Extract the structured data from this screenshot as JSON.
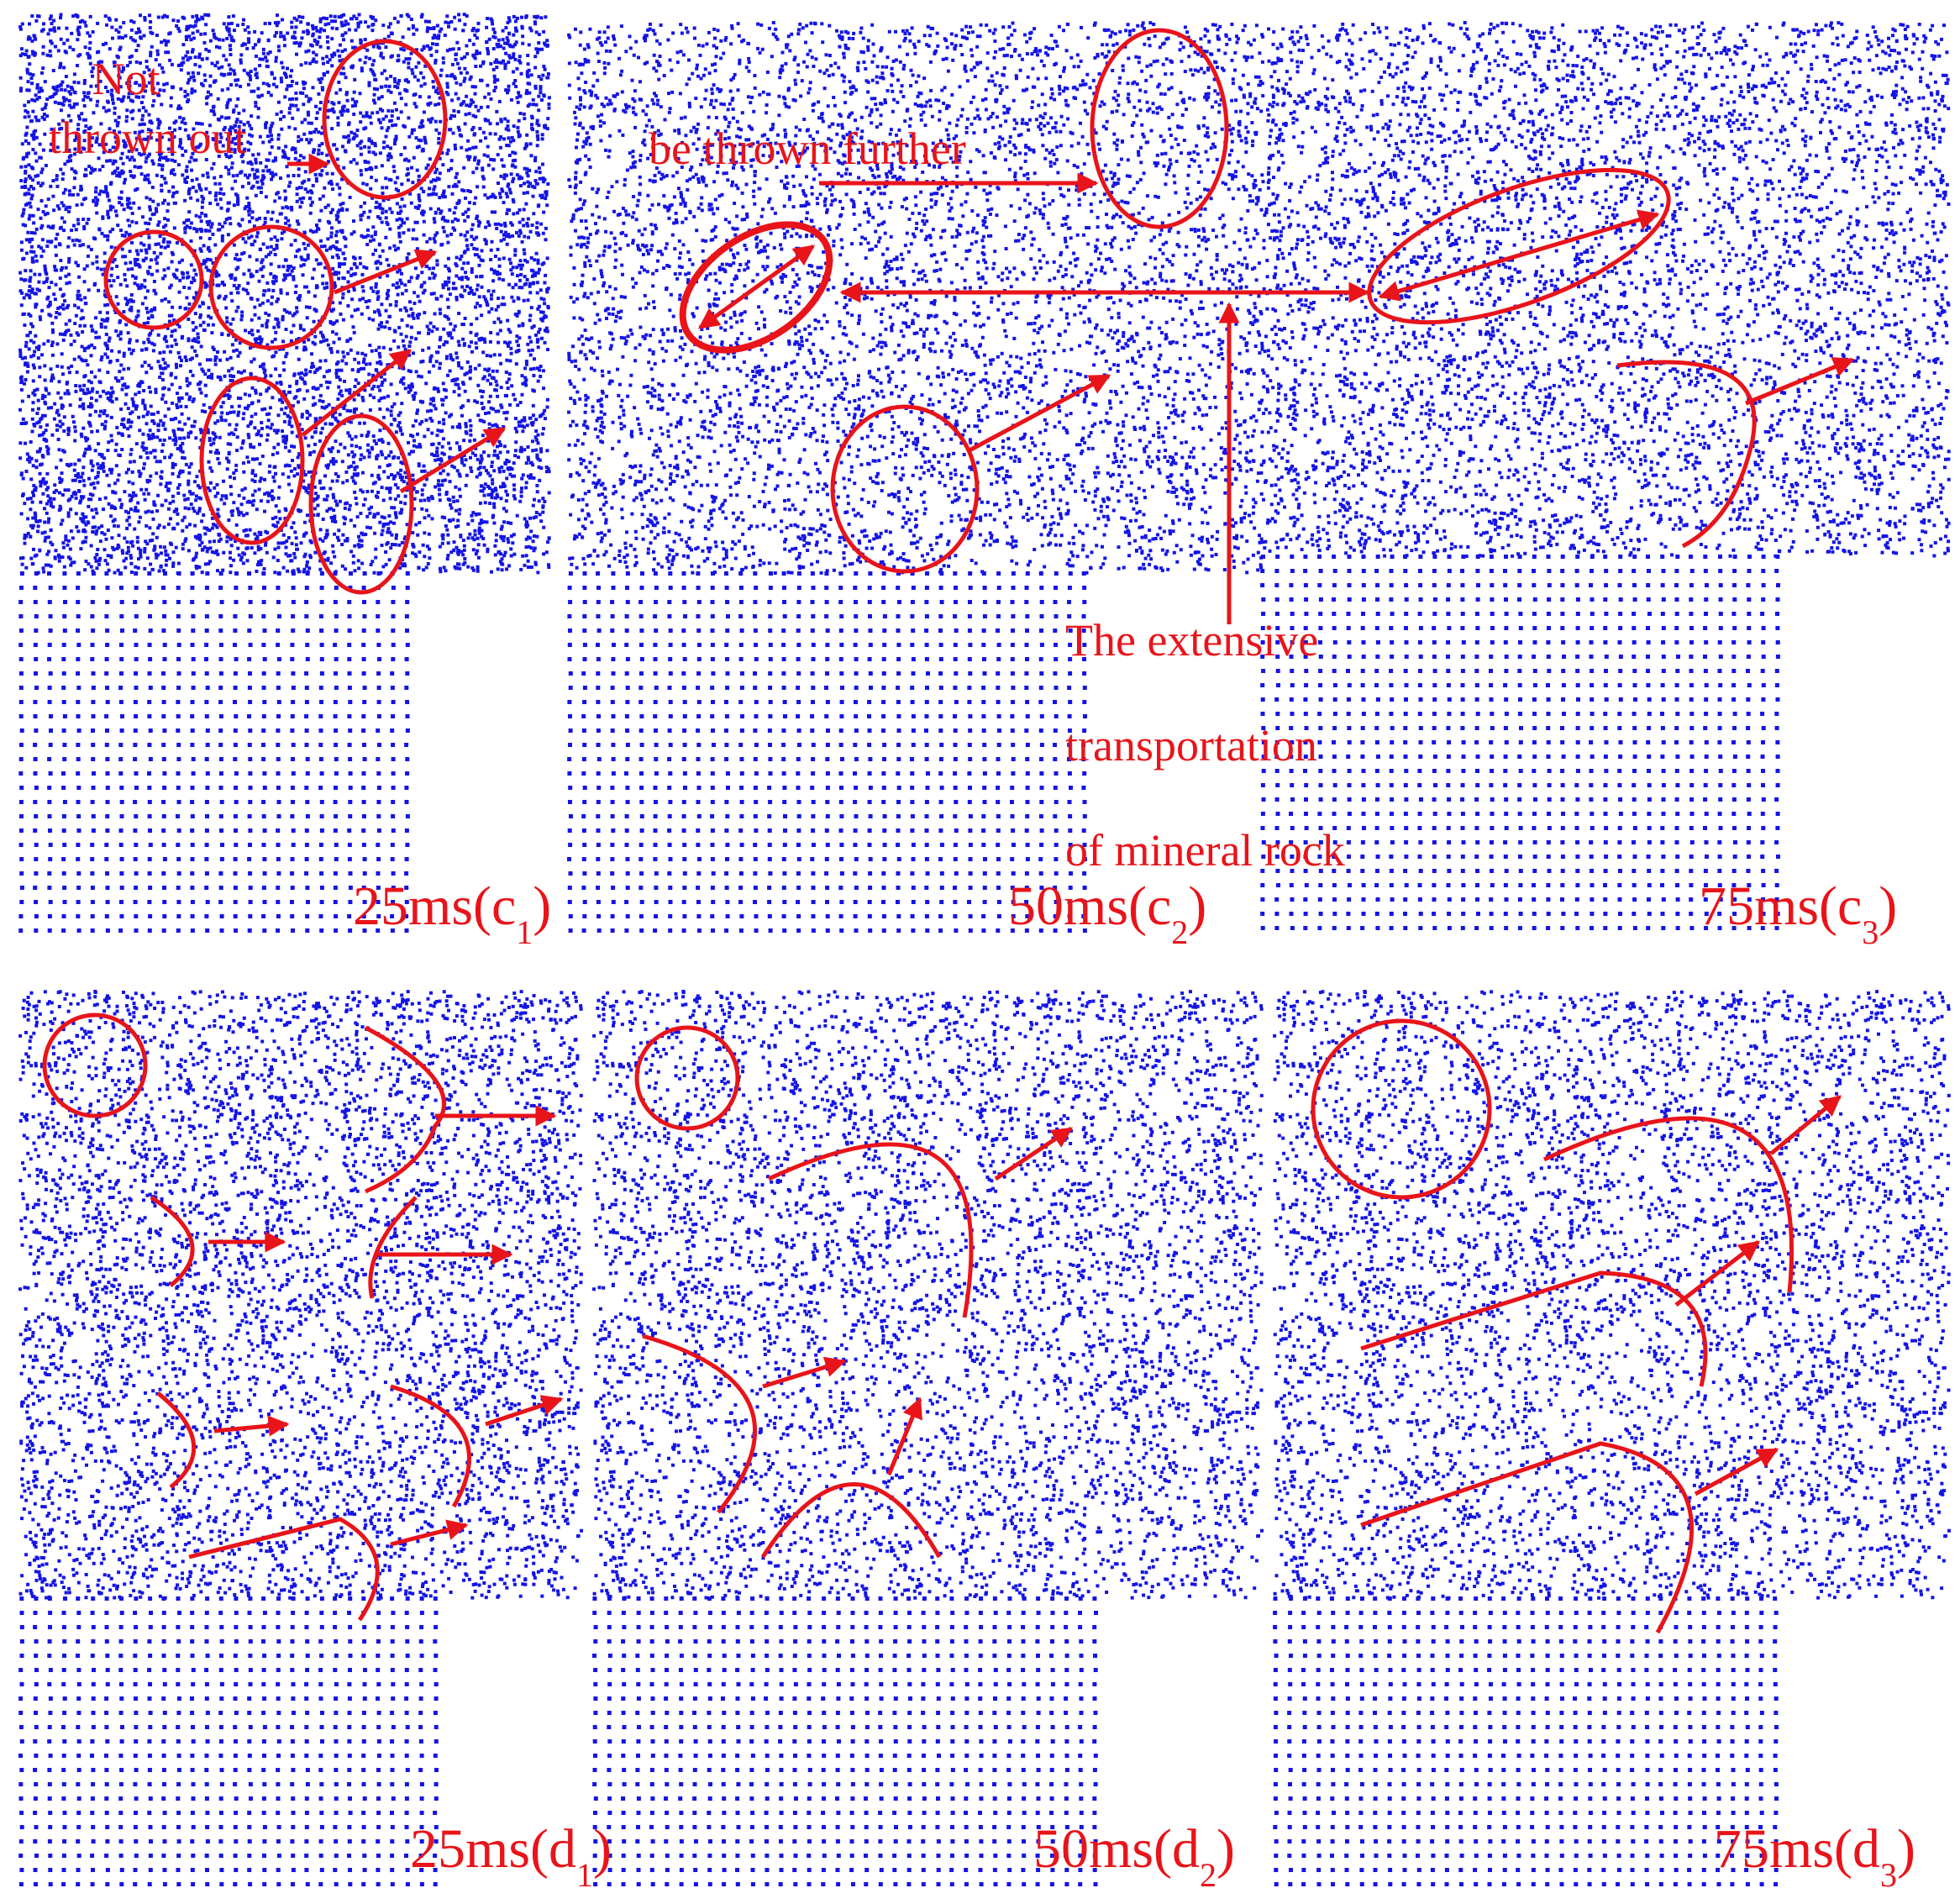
{
  "panels": [
    {
      "label": {
        "text": "25ms(c",
        "subscript": "1",
        "close": ")"
      }
    },
    {
      "label": {
        "text": "50ms(c",
        "subscript": "2",
        "close": ")"
      }
    },
    {
      "label": {
        "text": "75ms(c",
        "subscript": "3",
        "close": ")"
      }
    },
    {
      "label": {
        "text": "25ms(d",
        "subscript": "1",
        "close": ")"
      }
    },
    {
      "label": {
        "text": "50ms(d",
        "subscript": "2",
        "close": ")"
      }
    },
    {
      "label": {
        "text": "75ms(d",
        "subscript": "3",
        "close": ")"
      }
    }
  ],
  "annotations": {
    "not_thrown_out": [
      "Not",
      "thrown out"
    ],
    "thrown_further": "be thrown further",
    "transport": [
      "The extensive",
      "transportation",
      "of mineral rock"
    ]
  }
}
